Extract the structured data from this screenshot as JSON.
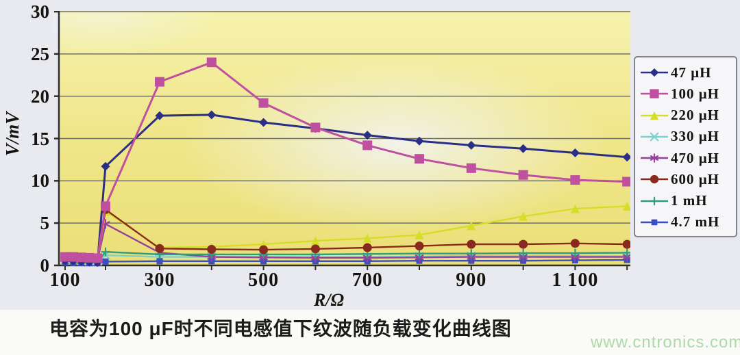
{
  "chart_data": {
    "type": "line",
    "title": "电容为100 μF时不同电感值下纹波随负载变化曲线图",
    "xlabel": "R/Ω",
    "ylabel": "V/mV",
    "ylim": [
      0,
      30
    ],
    "grid": true,
    "legend_position": "right",
    "y_ticks": [
      "0",
      "5",
      "10",
      "15",
      "20",
      "25",
      "30"
    ],
    "x_tick_labels": [
      "100",
      "300",
      "500",
      "700",
      "900",
      "1 100"
    ],
    "x_tick_label_values": [
      100,
      300,
      500,
      700,
      900,
      1100
    ],
    "x_minor_tick_values": [
      100,
      200,
      300,
      400,
      500,
      600,
      700,
      800,
      900,
      1000,
      1100,
      1200
    ],
    "x": [
      100,
      120,
      140,
      160,
      180,
      200,
      300,
      400,
      500,
      600,
      700,
      800,
      900,
      1000,
      1100,
      1200
    ],
    "series": [
      {
        "name": "47 μH",
        "color": "#2b2e85",
        "marker": "diamond",
        "values": [
          0.55,
          0.5,
          0.45,
          0.4,
          0.35,
          11.7,
          17.7,
          17.8,
          16.9,
          16.2,
          15.4,
          14.7,
          14.2,
          13.8,
          13.3,
          12.8
        ]
      },
      {
        "name": "100 μH",
        "color": "#bf4f9f",
        "marker": "square",
        "values": [
          1.0,
          1.0,
          0.95,
          0.9,
          0.85,
          7.0,
          21.7,
          24.0,
          19.2,
          16.3,
          14.2,
          12.6,
          11.5,
          10.7,
          10.1,
          9.9
        ]
      },
      {
        "name": "220 μH",
        "color": "#d5dd28",
        "marker": "triangle",
        "values": [
          0.85,
          0.8,
          0.8,
          0.75,
          0.7,
          6.4,
          2.1,
          2.2,
          2.5,
          2.9,
          3.2,
          3.6,
          4.7,
          5.8,
          6.7,
          7.0
        ]
      },
      {
        "name": "330 μH",
        "color": "#7cd1cf",
        "marker": "x",
        "values": [
          0.6,
          0.6,
          0.55,
          0.5,
          0.5,
          1.2,
          1.0,
          1.0,
          1.0,
          1.0,
          1.0,
          1.05,
          1.1,
          1.1,
          1.1,
          1.1
        ]
      },
      {
        "name": "470 μH",
        "color": "#96419b",
        "marker": "asterisk",
        "values": [
          0.7,
          0.7,
          0.65,
          0.6,
          0.55,
          4.9,
          1.5,
          1.0,
          0.95,
          0.9,
          0.9,
          0.95,
          1.0,
          1.0,
          1.0,
          1.0
        ]
      },
      {
        "name": "600 μH",
        "color": "#8a2a1f",
        "marker": "circle",
        "values": [
          0.95,
          0.9,
          0.9,
          0.85,
          0.8,
          6.6,
          2.0,
          1.9,
          1.85,
          1.95,
          2.1,
          2.3,
          2.5,
          2.5,
          2.6,
          2.5
        ]
      },
      {
        "name": "1 mH",
        "color": "#2f9c7c",
        "marker": "plus",
        "values": [
          0.5,
          0.45,
          0.45,
          0.4,
          0.4,
          1.6,
          1.3,
          1.3,
          1.3,
          1.3,
          1.35,
          1.4,
          1.4,
          1.45,
          1.45,
          1.5
        ]
      },
      {
        "name": "4.7 mH",
        "color": "#3b4fc0",
        "marker": "square",
        "values": [
          0.35,
          0.3,
          0.3,
          0.3,
          0.3,
          0.45,
          0.5,
          0.5,
          0.5,
          0.5,
          0.5,
          0.55,
          0.55,
          0.55,
          0.6,
          0.65
        ]
      }
    ]
  },
  "watermark": "www.cntronics.com"
}
